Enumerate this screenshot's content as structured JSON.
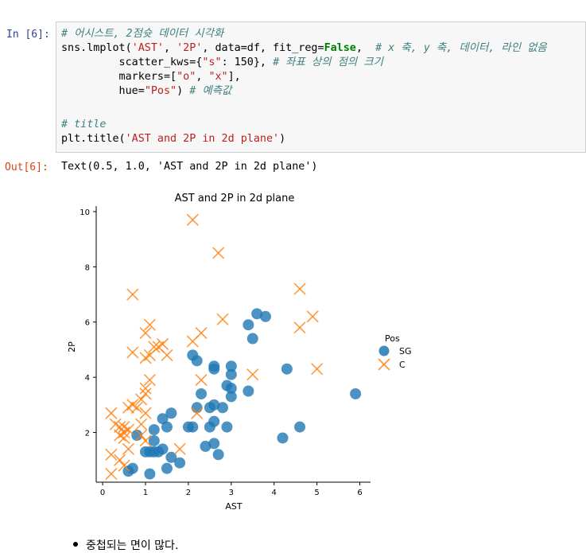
{
  "cell": {
    "in_prompt": "In [6]:",
    "out_prompt": "Out[6]:",
    "code": {
      "l1_comment": "# 어시스트, 2점슛 데이터 시각화",
      "l2_a": "sns.lmplot(",
      "l2_s1": "'AST'",
      "l2_b": ", ",
      "l2_s2": "'2P'",
      "l2_c": ", data=df, fit_reg=",
      "l2_kw": "False",
      "l2_d": ",  ",
      "l2_comment": "# x 축, y 축, 데이터, 라인 없음",
      "l3_a": "         scatter_kws={",
      "l3_s": "\"s\"",
      "l3_b": ": 150}, ",
      "l3_comment": "# 좌표 상의 점의 크기",
      "l4_a": "         markers=[",
      "l4_s1": "\"o\"",
      "l4_b": ", ",
      "l4_s2": "\"x\"",
      "l4_c": "],",
      "l5_a": "         hue=",
      "l5_s": "\"Pos\"",
      "l5_b": ") ",
      "l5_comment": "# 예측값",
      "l7_comment": "# title",
      "l8_a": "plt.title(",
      "l8_s": "'AST and 2P in 2d plane'",
      "l8_b": ")"
    },
    "output_text": "Text(0.5, 1.0, 'AST and 2P in 2d plane')"
  },
  "chart_data": {
    "type": "scatter",
    "title": "AST and 2P in 2d plane",
    "xlabel": "AST",
    "ylabel": "2P",
    "xlim": [
      -0.15,
      6.25
    ],
    "ylim": [
      0.2,
      10.2
    ],
    "xticks": [
      0,
      1,
      2,
      3,
      4,
      5,
      6
    ],
    "yticks": [
      2,
      4,
      6,
      8,
      10
    ],
    "legend": {
      "title": "Pos",
      "placement": "right"
    },
    "series": [
      {
        "name": "SG",
        "marker": "o",
        "color": "#1f77b4",
        "points": [
          [
            3.6,
            6.3
          ],
          [
            3.8,
            6.2
          ],
          [
            3.4,
            5.9
          ],
          [
            3.5,
            5.4
          ],
          [
            2.1,
            4.8
          ],
          [
            2.2,
            4.6
          ],
          [
            2.6,
            4.4
          ],
          [
            2.6,
            4.3
          ],
          [
            3.0,
            4.4
          ],
          [
            3.0,
            4.1
          ],
          [
            4.3,
            4.3
          ],
          [
            2.9,
            3.7
          ],
          [
            3.0,
            3.6
          ],
          [
            3.0,
            3.3
          ],
          [
            3.4,
            3.5
          ],
          [
            2.3,
            3.4
          ],
          [
            5.9,
            3.4
          ],
          [
            2.2,
            2.9
          ],
          [
            2.5,
            2.9
          ],
          [
            2.6,
            3.0
          ],
          [
            2.8,
            2.9
          ],
          [
            1.6,
            2.7
          ],
          [
            1.4,
            2.5
          ],
          [
            2.6,
            2.4
          ],
          [
            1.2,
            2.1
          ],
          [
            1.5,
            2.2
          ],
          [
            2.0,
            2.2
          ],
          [
            2.1,
            2.2
          ],
          [
            2.5,
            2.2
          ],
          [
            2.9,
            2.2
          ],
          [
            4.6,
            2.2
          ],
          [
            0.8,
            1.9
          ],
          [
            1.2,
            1.7
          ],
          [
            4.2,
            1.8
          ],
          [
            2.4,
            1.5
          ],
          [
            2.6,
            1.6
          ],
          [
            1.4,
            1.4
          ],
          [
            1.0,
            1.3
          ],
          [
            1.1,
            1.3
          ],
          [
            1.2,
            1.3
          ],
          [
            1.3,
            1.3
          ],
          [
            1.6,
            1.1
          ],
          [
            1.8,
            0.9
          ],
          [
            2.7,
            1.2
          ],
          [
            0.7,
            0.7
          ],
          [
            0.6,
            0.6
          ],
          [
            1.5,
            0.7
          ],
          [
            1.1,
            0.5
          ]
        ]
      },
      {
        "name": "C",
        "marker": "x",
        "color": "#ff7f0e",
        "points": [
          [
            2.1,
            9.7
          ],
          [
            2.7,
            8.5
          ],
          [
            0.7,
            7.0
          ],
          [
            4.6,
            7.2
          ],
          [
            4.9,
            6.2
          ],
          [
            2.8,
            6.1
          ],
          [
            4.6,
            5.8
          ],
          [
            1.1,
            5.9
          ],
          [
            1.0,
            5.6
          ],
          [
            2.1,
            5.3
          ],
          [
            2.3,
            5.6
          ],
          [
            1.2,
            5.1
          ],
          [
            1.3,
            5.1
          ],
          [
            1.4,
            5.2
          ],
          [
            1.5,
            4.8
          ],
          [
            0.7,
            4.9
          ],
          [
            1.0,
            4.7
          ],
          [
            1.1,
            4.8
          ],
          [
            1.1,
            3.9
          ],
          [
            3.5,
            4.1
          ],
          [
            5.0,
            4.3
          ],
          [
            2.3,
            3.9
          ],
          [
            1.0,
            3.6
          ],
          [
            1.0,
            3.4
          ],
          [
            0.7,
            3.0
          ],
          [
            0.9,
            3.2
          ],
          [
            0.6,
            2.9
          ],
          [
            0.8,
            2.9
          ],
          [
            2.2,
            2.7
          ],
          [
            0.2,
            2.7
          ],
          [
            1.0,
            2.7
          ],
          [
            0.3,
            2.3
          ],
          [
            0.4,
            2.2
          ],
          [
            0.5,
            2.2
          ],
          [
            0.5,
            2.0
          ],
          [
            0.6,
            2.1
          ],
          [
            0.5,
            1.8
          ],
          [
            0.4,
            1.9
          ],
          [
            0.9,
            2.3
          ],
          [
            0.9,
            1.9
          ],
          [
            1.0,
            1.7
          ],
          [
            0.6,
            1.4
          ],
          [
            1.8,
            1.4
          ],
          [
            0.2,
            1.2
          ],
          [
            0.4,
            1.0
          ],
          [
            0.5,
            0.8
          ],
          [
            0.2,
            0.5
          ]
        ]
      }
    ]
  },
  "notes": {
    "bullet": "중첩되는 면이 많다."
  }
}
